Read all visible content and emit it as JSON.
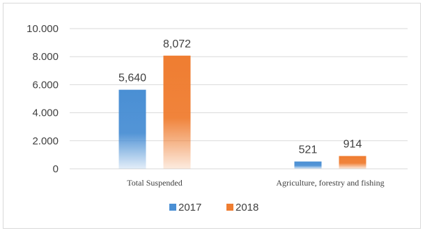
{
  "chart_data": {
    "type": "bar",
    "categories": [
      "Total Suspended",
      "Agriculture, forestry and fishing"
    ],
    "series": [
      {
        "name": "2017",
        "values": [
          5640,
          521
        ],
        "labels": [
          "5,640",
          "521"
        ],
        "color": "#4a8fd4"
      },
      {
        "name": "2018",
        "values": [
          8072,
          914
        ],
        "labels": [
          "8,072",
          "914"
        ],
        "color": "#ef7d31"
      }
    ],
    "ylim": [
      0,
      10000
    ],
    "yticks": [
      0,
      2000,
      4000,
      6000,
      8000,
      10000
    ],
    "ytick_labels": [
      "0",
      "2.000",
      "4.000",
      "6.000",
      "8.000",
      "10.000"
    ],
    "grid": true,
    "legend": "bottom",
    "title": "",
    "xlabel": "",
    "ylabel": ""
  }
}
